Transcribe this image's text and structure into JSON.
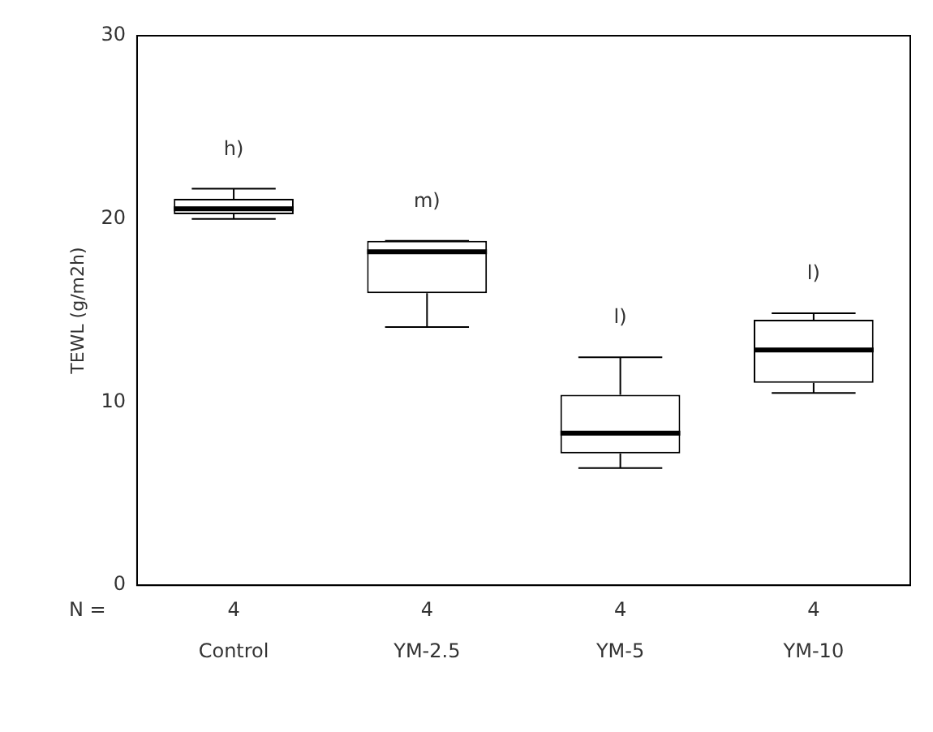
{
  "chart_data": {
    "type": "box",
    "ylabel": "TEWL (g/m2h)",
    "categories": [
      "Control",
      "YM-2.5",
      "YM-5",
      "YM-10"
    ],
    "boxes": [
      {
        "low": 20.0,
        "q1": 20.25,
        "median": 20.55,
        "q3": 21.1,
        "high": 21.65
      },
      {
        "low": 14.1,
        "q1": 15.95,
        "median": 18.2,
        "q3": 18.8,
        "high": 18.8
      },
      {
        "low": 6.4,
        "q1": 7.2,
        "median": 8.3,
        "q3": 10.4,
        "high": 12.45
      },
      {
        "low": 10.5,
        "q1": 11.05,
        "median": 12.85,
        "q3": 14.5,
        "high": 14.85
      }
    ],
    "ylim": [
      0,
      30
    ],
    "yticks": [
      0,
      10,
      20,
      30
    ],
    "grid": false,
    "legend": false,
    "annotations": [
      "h)",
      "m)",
      "l)",
      "l)",
      "N =",
      "4",
      "4",
      "4",
      "4"
    ]
  }
}
